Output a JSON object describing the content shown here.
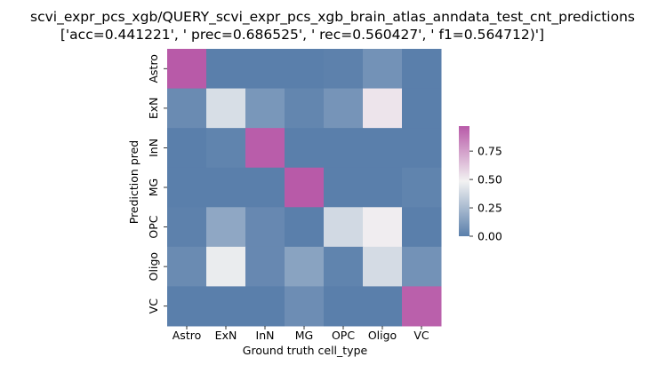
{
  "chart_data": {
    "type": "heatmap",
    "title": "scvi_expr_pcs_xgb/QUERY_scvi_expr_pcs_xgb_brain_atlas_anndata_test_cnt_predictions",
    "subtitle": "['acc=0.441221', '  prec=0.686525', ' rec=0.560427', ' f1=0.564712)']",
    "xlabel": "Ground truth cell_type",
    "ylabel": "Prediction pred",
    "x_categories": [
      "Astro",
      "ExN",
      "InN",
      "MG",
      "OPC",
      "Oligo",
      "VC"
    ],
    "y_categories": [
      "Astro",
      "ExN",
      "InN",
      "MG",
      "OPC",
      "Oligo",
      "VC"
    ],
    "values": [
      [
        0.97,
        0.0,
        0.0,
        0.0,
        0.01,
        0.08,
        0.0
      ],
      [
        0.05,
        0.4,
        0.1,
        0.03,
        0.09,
        0.53,
        0.0
      ],
      [
        0.0,
        0.02,
        0.96,
        0.0,
        0.0,
        0.0,
        0.0
      ],
      [
        0.0,
        0.0,
        0.0,
        0.97,
        0.0,
        0.0,
        0.02
      ],
      [
        0.01,
        0.17,
        0.04,
        0.0,
        0.38,
        0.5,
        0.0
      ],
      [
        0.05,
        0.46,
        0.04,
        0.15,
        0.02,
        0.39,
        0.08
      ],
      [
        0.0,
        0.0,
        -0.01,
        0.06,
        0.0,
        0.0,
        0.95
      ]
    ],
    "colorbar": {
      "min": 0.0,
      "max": 0.97,
      "ticks": [
        "0.00",
        "0.25",
        "0.50",
        "0.75"
      ],
      "tick_values": [
        0.0,
        0.25,
        0.5,
        0.75
      ]
    },
    "colormap": {
      "low": "#5a7fab",
      "mid": "#f2f2f2",
      "high": "#b85aa8"
    }
  }
}
